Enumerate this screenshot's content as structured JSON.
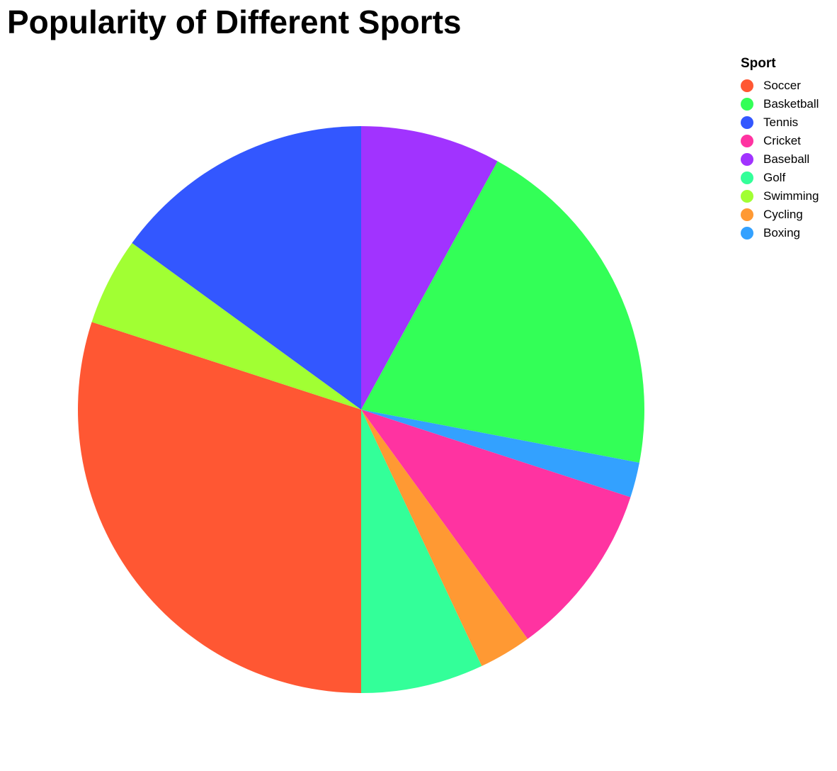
{
  "chart_data": {
    "type": "pie",
    "title": "Popularity of Different Sports",
    "legend_title": "Sport",
    "legend_position": "top-right",
    "slices": [
      {
        "label": "Soccer",
        "value": 30,
        "color": "#FF5733"
      },
      {
        "label": "Basketball",
        "value": 20,
        "color": "#33FF57"
      },
      {
        "label": "Tennis",
        "value": 15,
        "color": "#3357FF"
      },
      {
        "label": "Cricket",
        "value": 10,
        "color": "#FF33A1"
      },
      {
        "label": "Baseball",
        "value": 8,
        "color": "#A133FF"
      },
      {
        "label": "Golf",
        "value": 7,
        "color": "#33FF99"
      },
      {
        "label": "Swimming",
        "value": 5,
        "color": "#A1FF33"
      },
      {
        "label": "Cycling",
        "value": 3,
        "color": "#FF9933"
      },
      {
        "label": "Boxing",
        "value": 2,
        "color": "#33A1FF"
      }
    ],
    "drawing_order": [
      "Baseball",
      "Basketball",
      "Boxing",
      "Cricket",
      "Cycling",
      "Golf",
      "Soccer",
      "Swimming",
      "Tennis"
    ]
  }
}
